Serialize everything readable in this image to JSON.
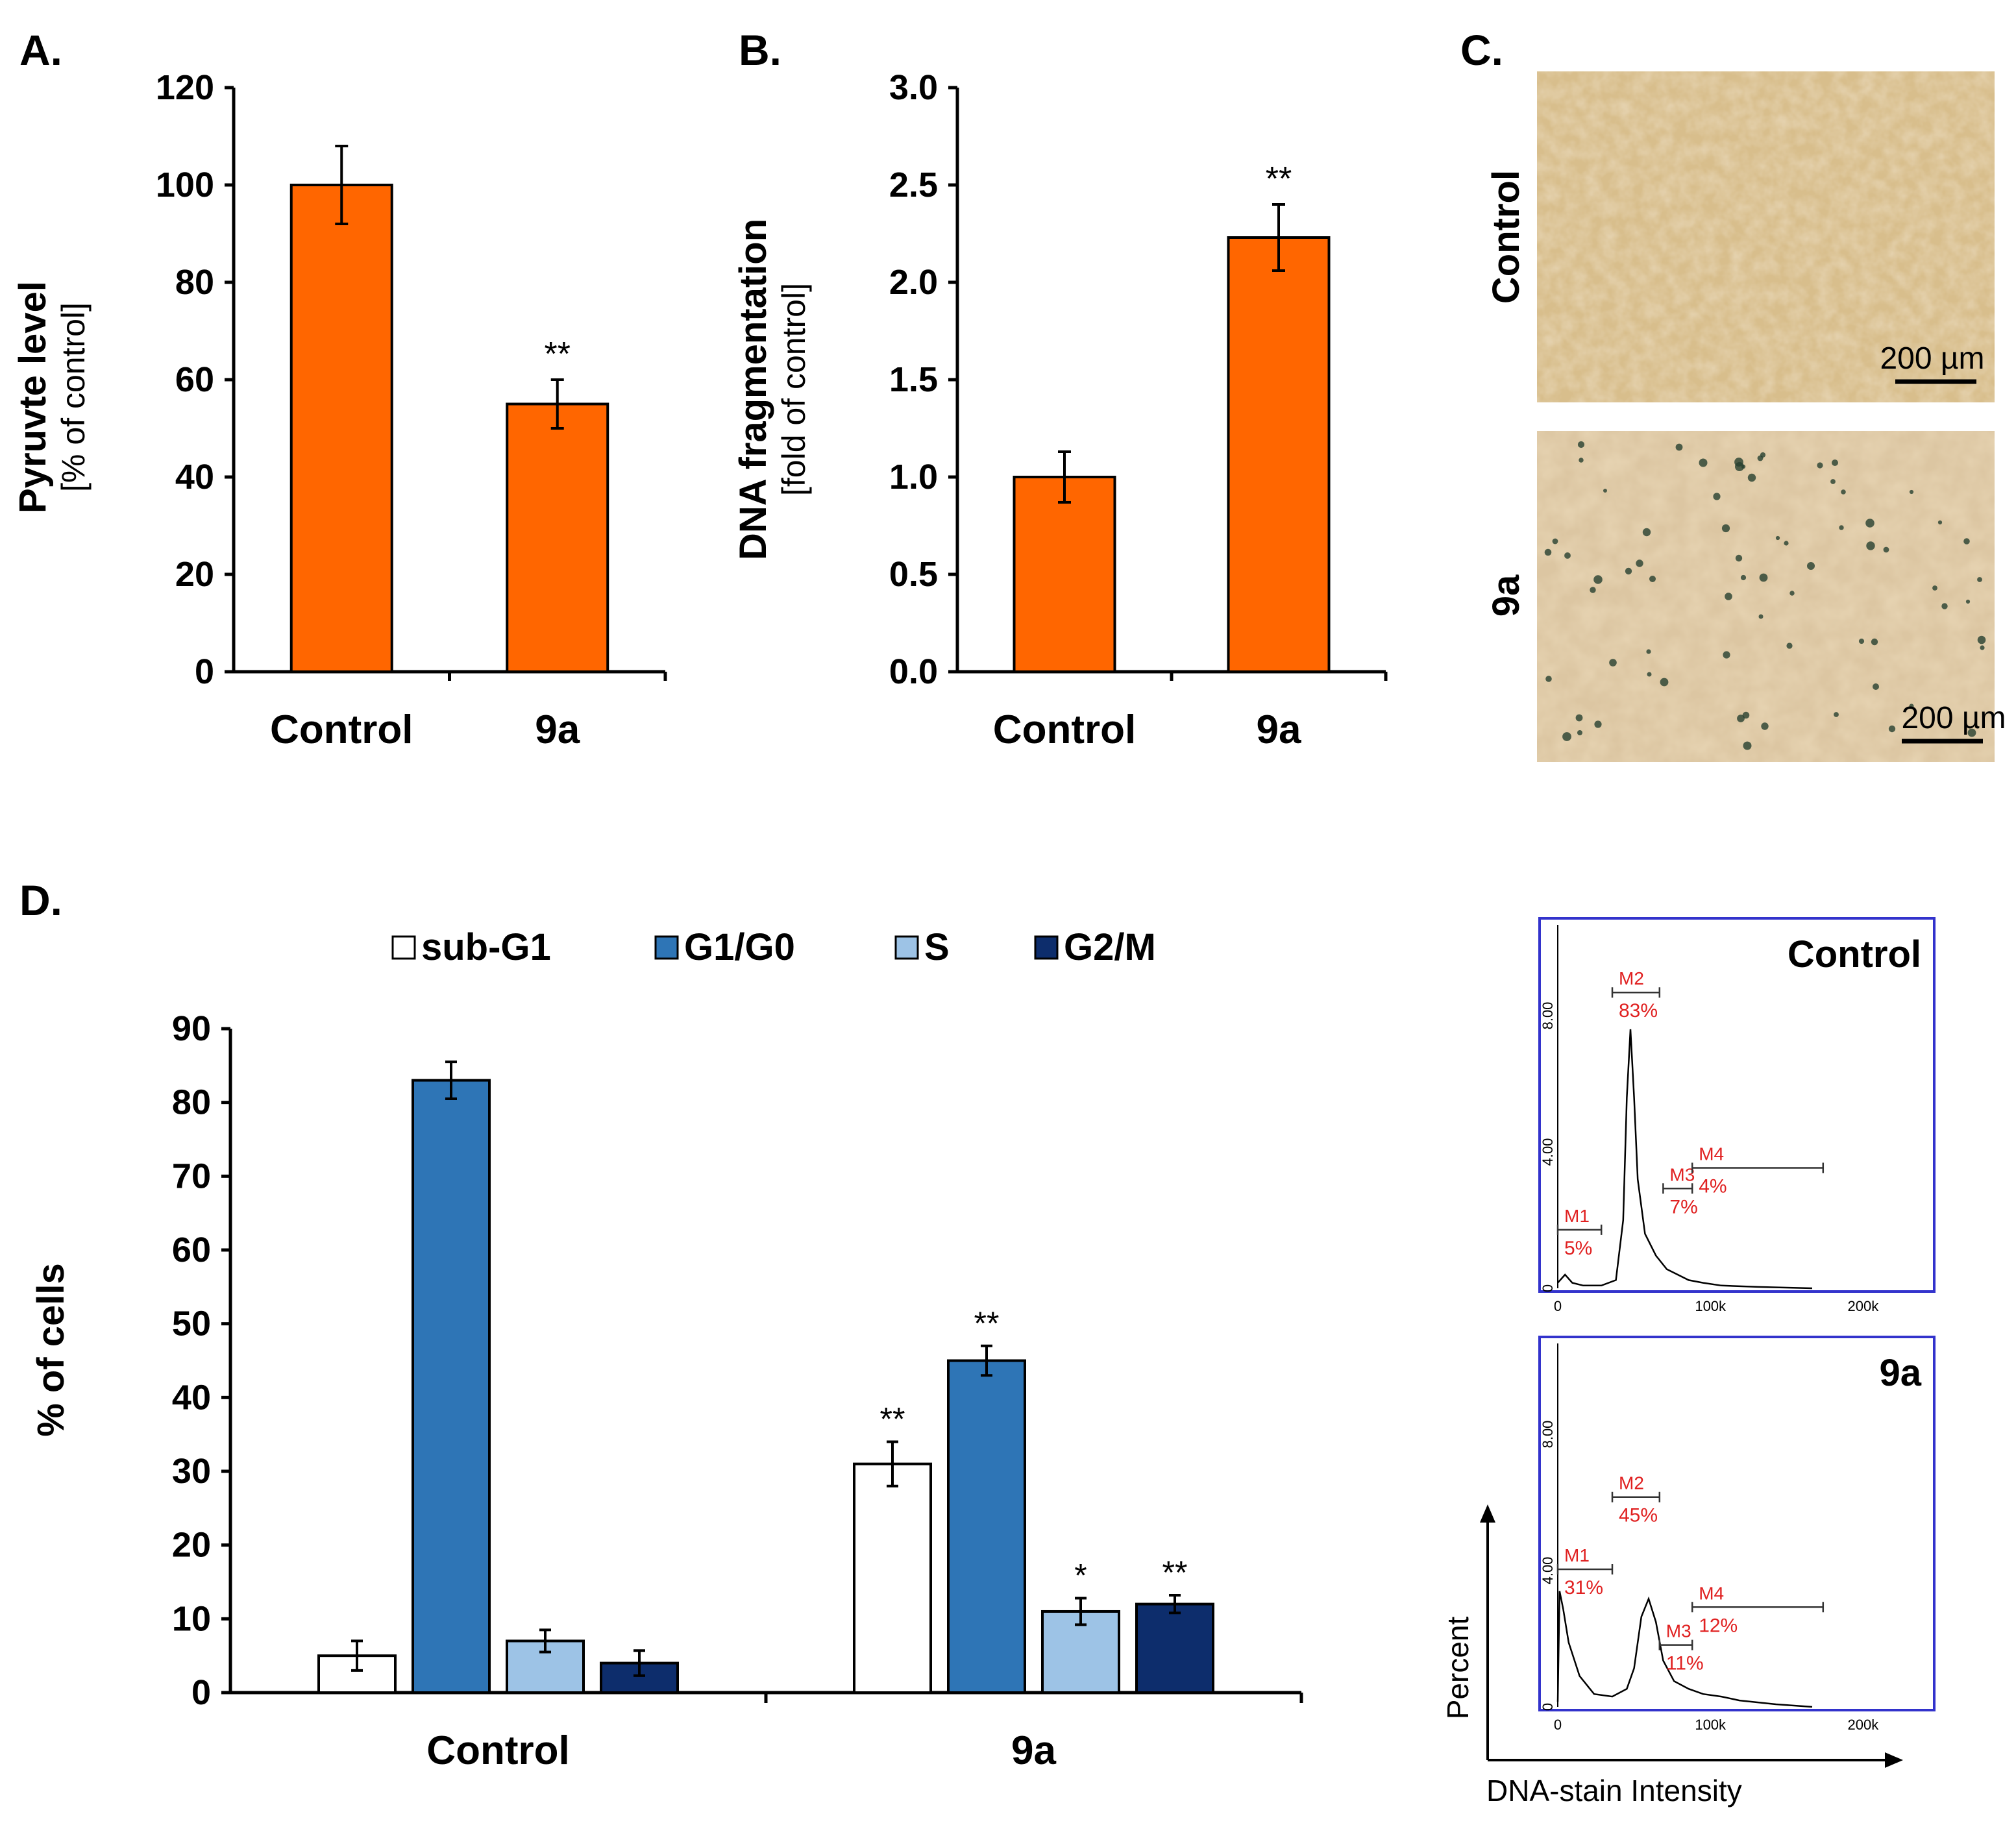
{
  "colors": {
    "orange": "#ff6600",
    "sub_g1": "#ffffff",
    "g1g0": "#2e75b6",
    "s": "#9dc3e6",
    "g2m": "#0d2d6c",
    "frame": "#3333cc",
    "marker": "#e02020"
  },
  "chart_data": [
    {
      "id": "A",
      "type": "bar",
      "panel_label": "A.",
      "ylabel": "Pyruvte level",
      "ylabel_sub": "[% of control]",
      "categories": [
        "Control",
        "9a"
      ],
      "values": [
        100,
        55
      ],
      "errors": [
        8,
        5
      ],
      "significance": [
        "",
        "**"
      ],
      "ylim": [
        0,
        120
      ],
      "yticks": [
        "0",
        "20",
        "40",
        "60",
        "80",
        "100",
        "120"
      ]
    },
    {
      "id": "B",
      "type": "bar",
      "panel_label": "B.",
      "ylabel": "DNA fragmentation",
      "ylabel_sub": "[fold of control]",
      "categories": [
        "Control",
        "9a"
      ],
      "values": [
        1.0,
        2.23
      ],
      "errors": [
        0.13,
        0.17
      ],
      "significance": [
        "",
        "**"
      ],
      "ylim": [
        0,
        3
      ],
      "yticks": [
        "0.0",
        "0.5",
        "1.0",
        "1.5",
        "2.0",
        "2.5",
        "3.0"
      ]
    },
    {
      "id": "D",
      "type": "bar",
      "panel_label": "D.",
      "ylabel": "% of cells",
      "categories": [
        "Control",
        "9a"
      ],
      "series": [
        {
          "name": "sub-G1",
          "values": [
            5,
            31
          ],
          "errors": [
            2,
            3
          ],
          "significance": [
            "",
            "**"
          ]
        },
        {
          "name": "G1/G0",
          "values": [
            83,
            45
          ],
          "errors": [
            2.5,
            2
          ],
          "significance": [
            "",
            "**"
          ]
        },
        {
          "name": "S",
          "values": [
            7,
            11
          ],
          "errors": [
            1.5,
            1.8
          ],
          "significance": [
            "",
            "*"
          ]
        },
        {
          "name": "G2/M",
          "values": [
            4,
            12
          ],
          "errors": [
            1.7,
            1.2
          ],
          "significance": [
            "",
            "**"
          ]
        }
      ],
      "ylim": [
        0,
        90
      ],
      "yticks": [
        "0",
        "10",
        "20",
        "30",
        "40",
        "50",
        "60",
        "70",
        "80",
        "90"
      ]
    },
    {
      "id": "D-hist",
      "type": "line",
      "xlabel": "DNA-stain Intensity",
      "ylabel": "Percent",
      "xticks": [
        "0",
        "100k",
        "200k"
      ],
      "yticks": [
        "0",
        "4.00",
        "8.00"
      ],
      "histograms": [
        {
          "label": "Control",
          "peak": 7.6,
          "markers": [
            {
              "name": "M1",
              "percent": "5%"
            },
            {
              "name": "M2",
              "percent": "83%"
            },
            {
              "name": "M3",
              "percent": "7%"
            },
            {
              "name": "M4",
              "percent": "4%"
            }
          ]
        },
        {
          "label": "9a",
          "peak": 3.4,
          "markers": [
            {
              "name": "M1",
              "percent": "31%"
            },
            {
              "name": "M2",
              "percent": "45%"
            },
            {
              "name": "M3",
              "percent": "11%"
            },
            {
              "name": "M4",
              "percent": "12%"
            }
          ]
        }
      ]
    }
  ],
  "micrographs": {
    "panel_label": "C.",
    "images": [
      {
        "label": "Control",
        "scale": "200 µm"
      },
      {
        "label": "9a",
        "scale": "200 µm"
      }
    ]
  }
}
